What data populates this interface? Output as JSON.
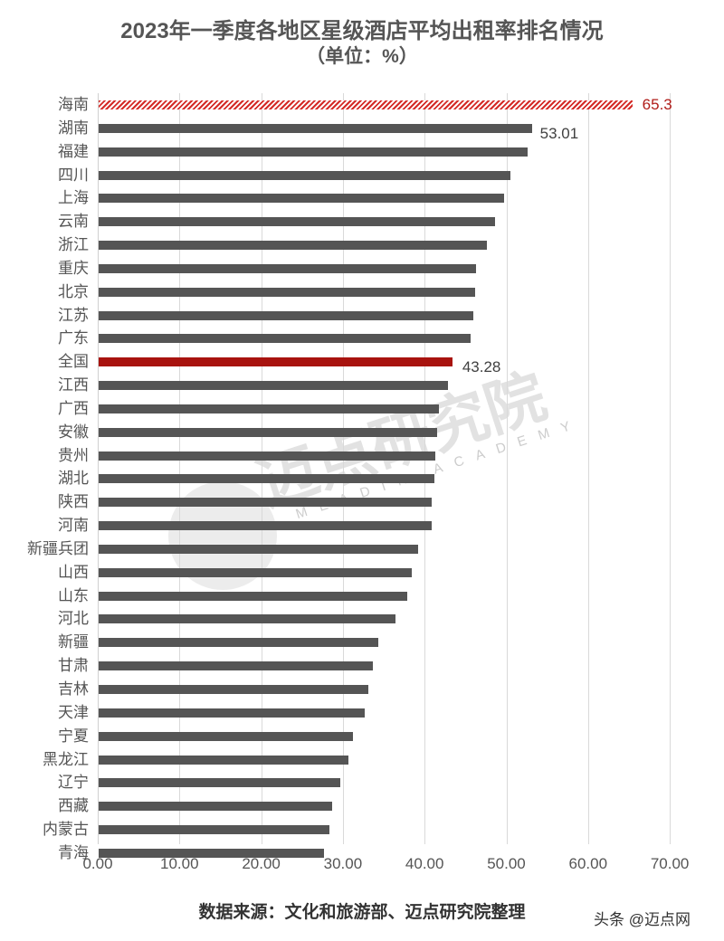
{
  "chart_data": {
    "type": "bar",
    "orientation": "horizontal",
    "title": "2023年一季度各地区星级酒店平均出租率排名情况",
    "subtitle": "（单位：%）",
    "xlabel": "",
    "ylabel": "",
    "xlim": [
      0,
      70
    ],
    "xticks": [
      "0.00",
      "10.00",
      "20.00",
      "30.00",
      "40.00",
      "50.00",
      "60.00",
      "70.00"
    ],
    "grid": true,
    "legend": null,
    "categories": [
      "海南",
      "湖南",
      "福建",
      "四川",
      "上海",
      "云南",
      "浙江",
      "重庆",
      "北京",
      "江苏",
      "广东",
      "全国",
      "江西",
      "广西",
      "安徽",
      "贵州",
      "湖北",
      "陕西",
      "河南",
      "新疆兵团",
      "山西",
      "山东",
      "河北",
      "新疆",
      "甘肃",
      "吉林",
      "天津",
      "宁夏",
      "黑龙江",
      "辽宁",
      "西藏",
      "内蒙古",
      "青海"
    ],
    "values": [
      65.3,
      53.01,
      52.5,
      50.4,
      49.6,
      48.5,
      47.5,
      46.2,
      46.1,
      45.9,
      45.5,
      43.28,
      42.7,
      41.6,
      41.4,
      41.2,
      41.1,
      40.7,
      40.7,
      39.1,
      38.3,
      37.8,
      36.3,
      34.2,
      33.5,
      33.0,
      32.6,
      31.1,
      30.6,
      29.6,
      28.6,
      28.2,
      27.6
    ],
    "data_labels": [
      {
        "category": "海南",
        "text": "65.3"
      },
      {
        "category": "湖南",
        "text": "53.01"
      },
      {
        "category": "全国",
        "text": "43.28"
      }
    ],
    "colors": {
      "default_bar": "#555555",
      "national_bar": "#a8130f",
      "highlight_hatch": "#d42a26",
      "highlight_label": "#b01c18",
      "grid": "#d9d9d9"
    }
  },
  "footer": {
    "source": "数据来源：文化和旅游部、迈点研究院整理",
    "credit": "头条 @迈点网"
  },
  "watermark": {
    "text": "迈点研究院",
    "subtext": "MEADIN ACADEMY"
  }
}
